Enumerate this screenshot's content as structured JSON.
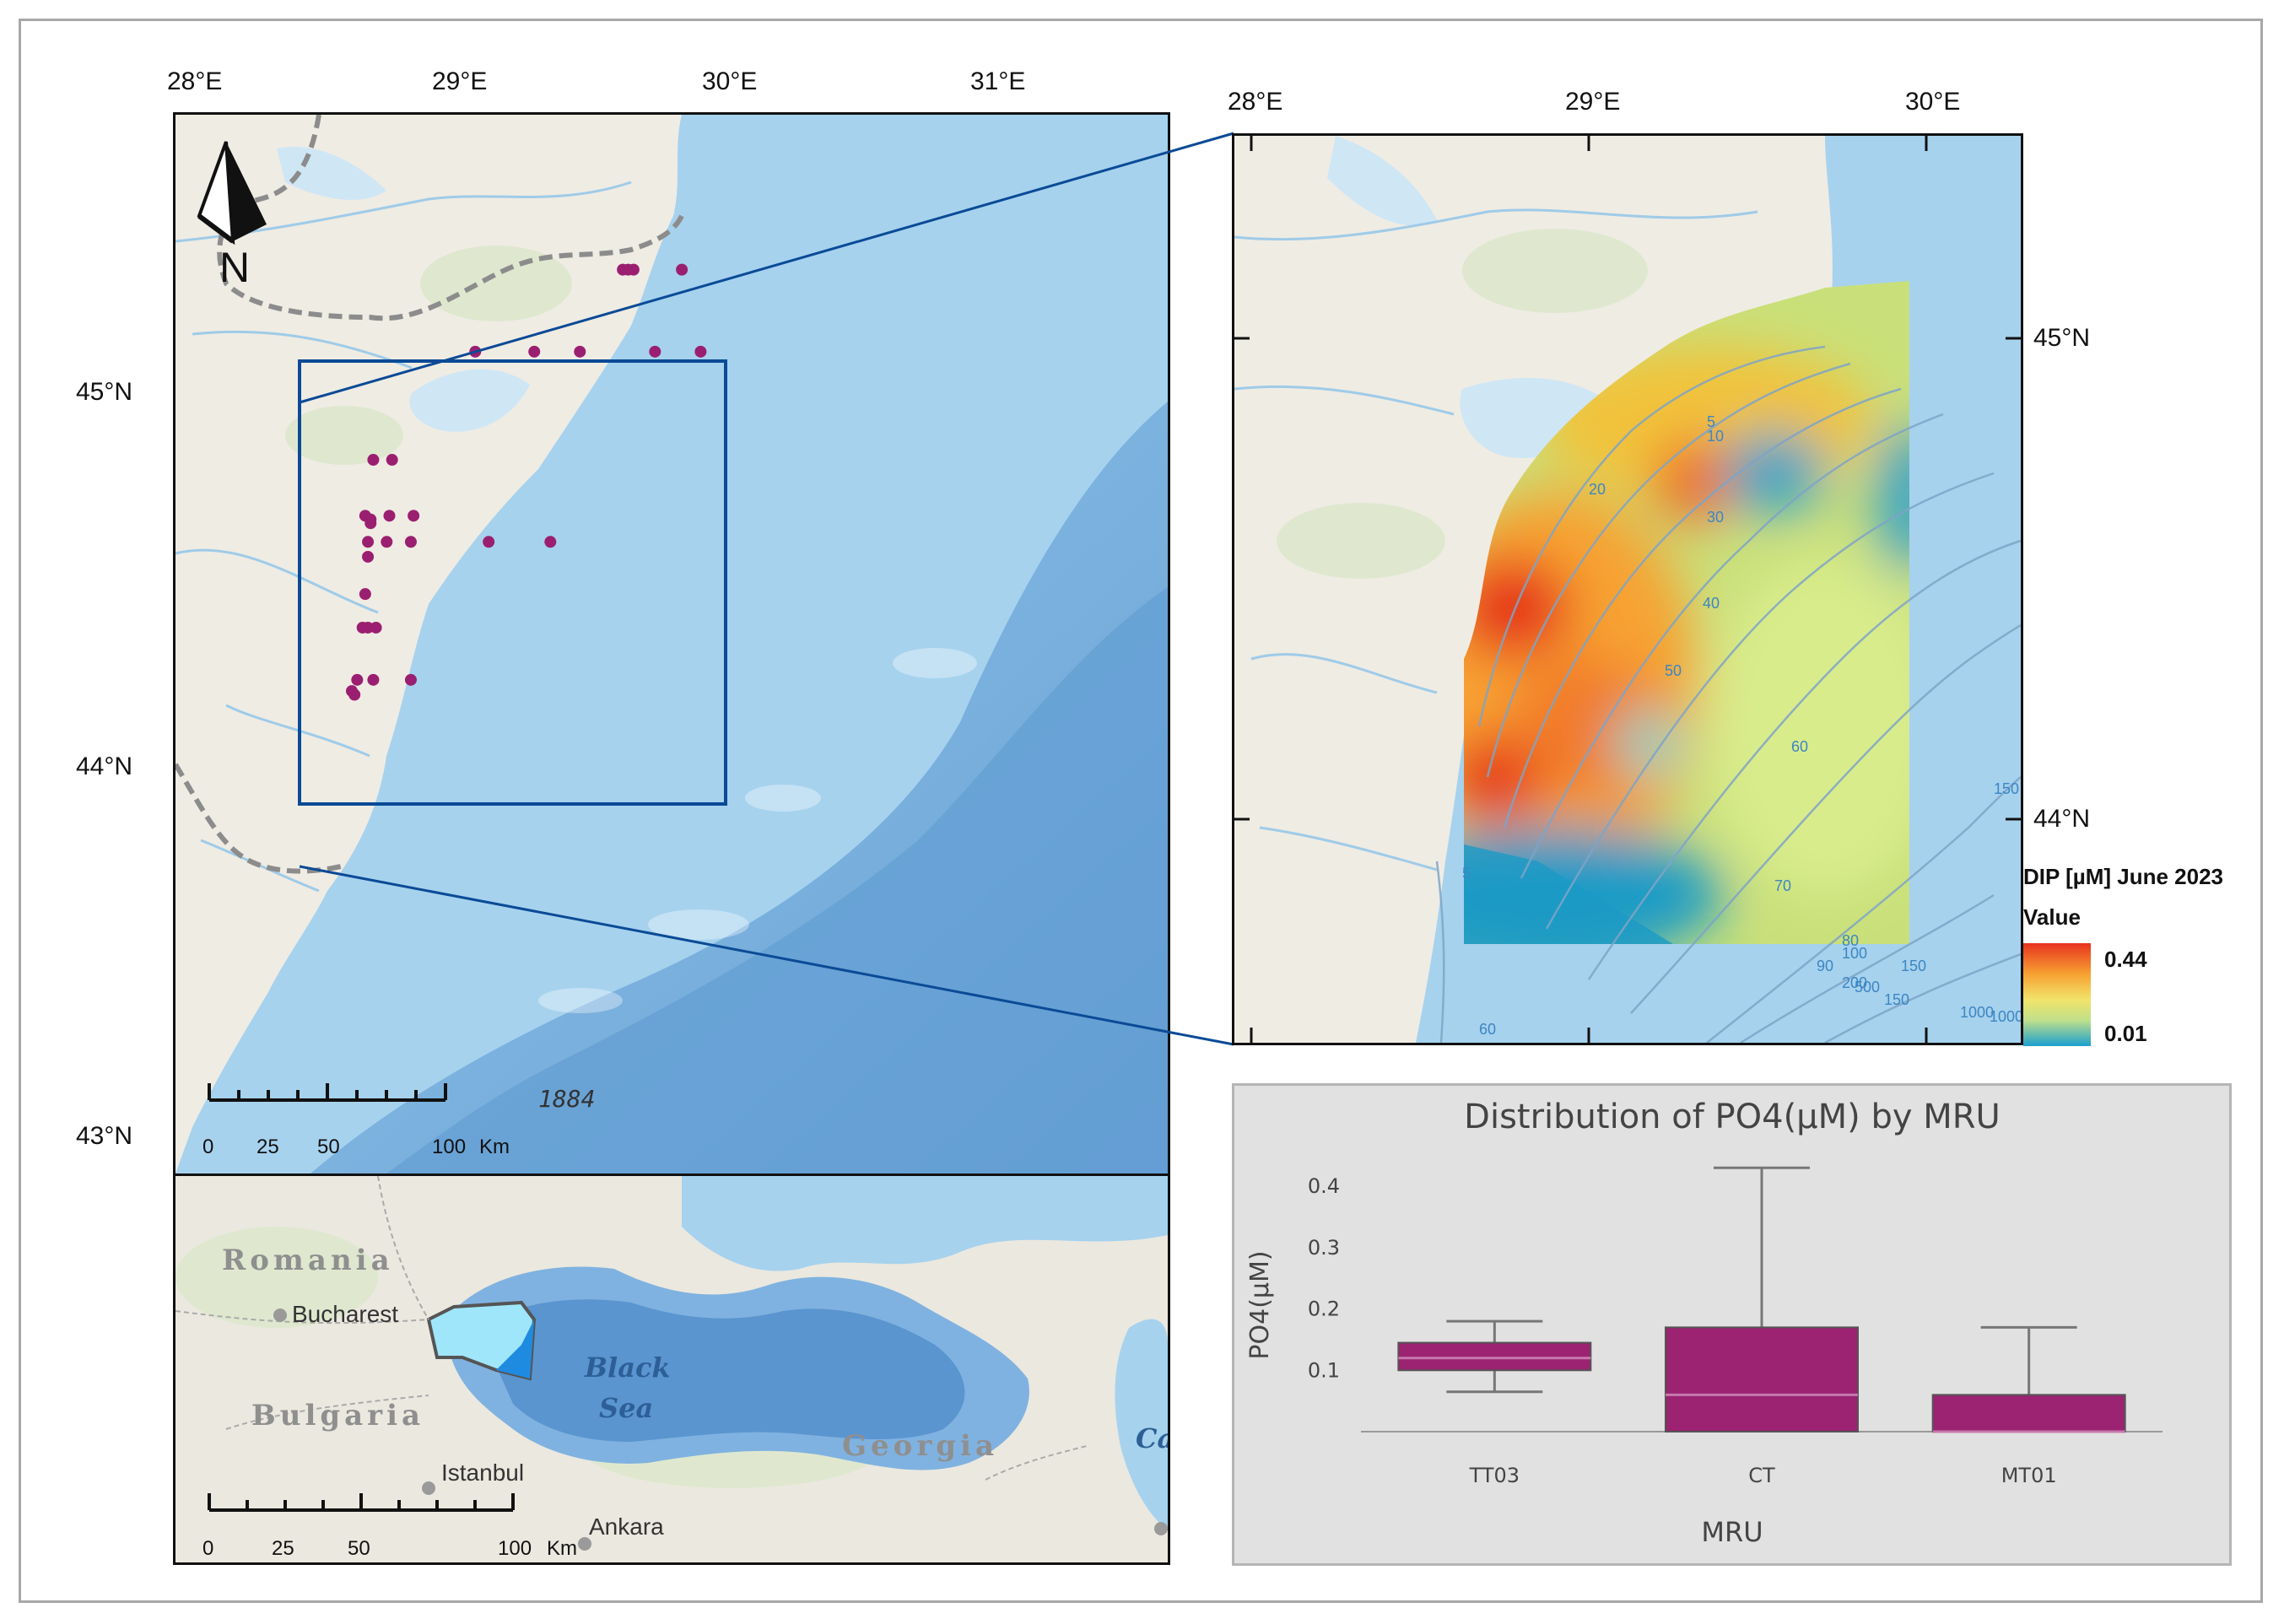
{
  "main_map": {
    "lon_labels": [
      "28°E",
      "29°E",
      "30°E",
      "31°E"
    ],
    "lat_labels": [
      "45°N",
      "44°N",
      "43°N"
    ],
    "north_label": "N",
    "depth_label": "1884",
    "scale_labels": [
      "0",
      "25",
      "50",
      "100",
      "Km"
    ],
    "stations": [
      {
        "lon": 29.62,
        "lat": 44.89
      },
      {
        "lon": 29.64,
        "lat": 44.89
      },
      {
        "lon": 29.66,
        "lat": 44.89
      },
      {
        "lon": 29.84,
        "lat": 44.89
      },
      {
        "lon": 29.07,
        "lat": 44.67
      },
      {
        "lon": 29.29,
        "lat": 44.67
      },
      {
        "lon": 29.46,
        "lat": 44.67
      },
      {
        "lon": 29.74,
        "lat": 44.67
      },
      {
        "lon": 29.91,
        "lat": 44.67
      },
      {
        "lon": 28.69,
        "lat": 44.38
      },
      {
        "lon": 28.76,
        "lat": 44.38
      },
      {
        "lon": 28.66,
        "lat": 44.23
      },
      {
        "lon": 28.68,
        "lat": 44.22
      },
      {
        "lon": 28.68,
        "lat": 44.21
      },
      {
        "lon": 28.75,
        "lat": 44.23
      },
      {
        "lon": 28.84,
        "lat": 44.23
      },
      {
        "lon": 28.67,
        "lat": 44.16
      },
      {
        "lon": 28.74,
        "lat": 44.16
      },
      {
        "lon": 28.83,
        "lat": 44.16
      },
      {
        "lon": 29.12,
        "lat": 44.16
      },
      {
        "lon": 29.35,
        "lat": 44.16
      },
      {
        "lon": 28.67,
        "lat": 44.12
      },
      {
        "lon": 28.66,
        "lat": 44.02
      },
      {
        "lon": 28.65,
        "lat": 43.93
      },
      {
        "lon": 28.67,
        "lat": 43.93
      },
      {
        "lon": 28.7,
        "lat": 43.93
      },
      {
        "lon": 28.63,
        "lat": 43.79
      },
      {
        "lon": 28.69,
        "lat": 43.79
      },
      {
        "lon": 28.83,
        "lat": 43.79
      },
      {
        "lon": 28.61,
        "lat": 43.76
      },
      {
        "lon": 28.62,
        "lat": 43.75
      }
    ],
    "colors": {
      "sea": "#a6d2ee",
      "land": "#efece4",
      "station": "#9b1f70",
      "frame": "#0b4a96"
    }
  },
  "inset_map": {
    "countries": [
      "Romania",
      "Bulgaria",
      "Georgia"
    ],
    "cities": [
      "Bucharest",
      "Istanbul",
      "Ankara"
    ],
    "sea_label": [
      "Black",
      "Sea"
    ],
    "partial_label": "Ca",
    "scale_labels": [
      "0",
      "25",
      "50",
      "100",
      "Km"
    ]
  },
  "zoom_map": {
    "lon_labels": [
      "28°E",
      "29°E",
      "30°E"
    ],
    "lat_labels": [
      "45°N",
      "44°N"
    ],
    "contour_labels": [
      "5",
      "10",
      "20",
      "30",
      "40",
      "50",
      "60",
      "70",
      "80",
      "90",
      "100",
      "150",
      "200",
      "150",
      "500",
      "1000",
      "1000",
      "150",
      "60",
      "5"
    ],
    "legend": {
      "title": "DIP [µM] June 2023",
      "value_label": "Value",
      "max_label": "0.44",
      "min_label": "0.01",
      "max": 0.44,
      "min": 0.01
    }
  },
  "chart_data": {
    "type": "box",
    "title": "Distribution of PO4(µM) by MRU",
    "xlabel": "MRU",
    "ylabel": "PO4(µM)",
    "categories": [
      "TT03",
      "CT",
      "MT01"
    ],
    "yticks": [
      "0.1",
      "0.2",
      "0.3",
      "0.4"
    ],
    "ylim": [
      0,
      0.44
    ],
    "boxes": [
      {
        "category": "TT03",
        "min": 0.065,
        "q1": 0.1,
        "median": 0.12,
        "q3": 0.145,
        "max": 0.18
      },
      {
        "category": "CT",
        "min": 0.0,
        "q1": 0.0,
        "median": 0.06,
        "q3": 0.17,
        "max": 0.43
      },
      {
        "category": "MT01",
        "min": 0.0,
        "q1": 0.0,
        "median": 0.0,
        "q3": 0.06,
        "max": 0.17
      }
    ],
    "grid": false,
    "box_color": "#9b2372"
  }
}
